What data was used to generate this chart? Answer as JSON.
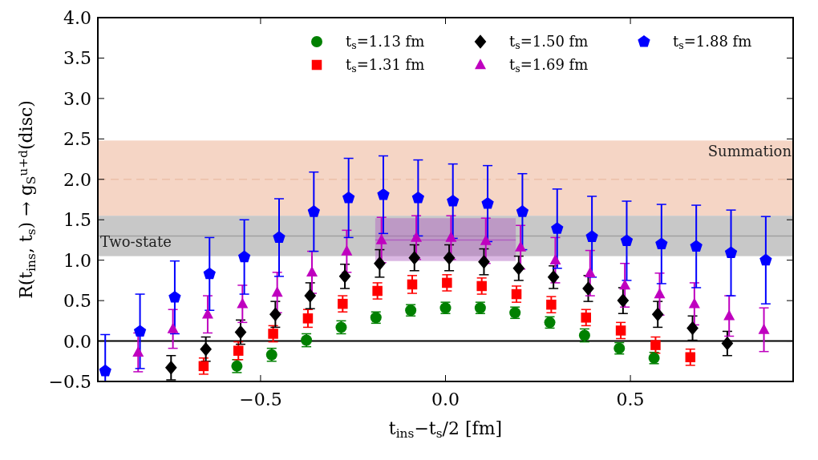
{
  "chart_data": {
    "type": "scatter",
    "xlabel": "t$_{ins}$−t$_{s}$/2 [fm]",
    "ylabel": "R(t$_{ins}$, t$_{s}$) → g$_{S}$$^{u+d}$(disc)",
    "xlim": [
      -0.94,
      0.94
    ],
    "ylim": [
      -0.5,
      4.0
    ],
    "xticks": [
      {
        "value": -0.5,
        "label": "−0.5"
      },
      {
        "value": 0,
        "label": "0.0"
      },
      {
        "value": 0.5,
        "label": "0.5"
      }
    ],
    "yticks": [
      {
        "value": -0.5,
        "label": "−0.5"
      },
      {
        "value": 0,
        "label": "0.0"
      },
      {
        "value": 0.5,
        "label": "0.5"
      },
      {
        "value": 1,
        "label": "1.0"
      },
      {
        "value": 1.5,
        "label": "1.5"
      },
      {
        "value": 2,
        "label": "2.0"
      },
      {
        "value": 2.5,
        "label": "2.5"
      },
      {
        "value": 3,
        "label": "3.0"
      },
      {
        "value": 3.5,
        "label": "3.5"
      },
      {
        "value": 4,
        "label": "4.0"
      }
    ],
    "legend": "top right",
    "bands": [
      {
        "axis": "y",
        "from": 1.55,
        "to": 2.48,
        "label": "Summation",
        "color": "#f5d5c5"
      },
      {
        "axis": "y",
        "from": 1.05,
        "to": 1.55,
        "label": "Two-state",
        "color": "#c8c8c8"
      }
    ],
    "ref_lines": [
      {
        "axis": "y",
        "value": 0,
        "color": "#000000",
        "line_style": "solid"
      },
      {
        "axis": "y",
        "value": 2.0,
        "color": "#ebbfa8",
        "line_style": "dashed"
      },
      {
        "axis": "y",
        "value": 1.3,
        "color": "#a0a0a0",
        "line_style": "solid"
      }
    ],
    "series": [
      {
        "type": "line",
        "color": "#b060c0",
        "x": [
          -0.19,
          0.19
        ],
        "values": [
          1.25,
          1.25
        ],
        "lower": [
          0.99,
          0.99
        ],
        "upper": [
          1.52,
          1.52
        ]
      },
      {
        "name": "t$_{s}$=1.13 fm",
        "color": "#008000",
        "marker": "circle",
        "x": [
          -0.564,
          -0.47,
          -0.376,
          -0.282,
          -0.188,
          -0.094,
          0,
          0.094,
          0.188,
          0.282,
          0.376,
          0.47,
          0.564
        ],
        "values": [
          -0.31,
          -0.17,
          0.01,
          0.17,
          0.29,
          0.38,
          0.41,
          0.41,
          0.35,
          0.23,
          0.07,
          -0.09,
          -0.21
        ],
        "errors": [
          0.08,
          0.08,
          0.08,
          0.08,
          0.07,
          0.07,
          0.07,
          0.07,
          0.07,
          0.07,
          0.08,
          0.07,
          0.07
        ]
      },
      {
        "name": "t$_{s}$=1.31 fm",
        "color": "#ff0000",
        "marker": "square",
        "x": [
          -0.654,
          -0.56,
          -0.466,
          -0.372,
          -0.278,
          -0.184,
          -0.09,
          0.004,
          0.098,
          0.192,
          0.286,
          0.38,
          0.474,
          0.568,
          0.662
        ],
        "values": [
          -0.31,
          -0.12,
          0.09,
          0.28,
          0.46,
          0.62,
          0.7,
          0.72,
          0.68,
          0.58,
          0.45,
          0.29,
          0.13,
          -0.05,
          -0.2
        ],
        "errors": [
          0.1,
          0.11,
          0.1,
          0.11,
          0.1,
          0.1,
          0.11,
          0.1,
          0.1,
          0.1,
          0.1,
          0.1,
          0.1,
          0.1,
          0.1
        ]
      },
      {
        "name": "t$_{s}$=1.50 fm",
        "color": "#000000",
        "marker": "diamond",
        "x": [
          -0.742,
          -0.648,
          -0.554,
          -0.46,
          -0.366,
          -0.272,
          -0.178,
          -0.084,
          0.01,
          0.104,
          0.198,
          0.292,
          0.386,
          0.48,
          0.574,
          0.668,
          0.762
        ],
        "values": [
          -0.33,
          -0.1,
          0.11,
          0.33,
          0.56,
          0.8,
          0.96,
          1.03,
          1.03,
          0.98,
          0.9,
          0.79,
          0.65,
          0.5,
          0.33,
          0.16,
          -0.03
        ],
        "errors": [
          0.15,
          0.15,
          0.15,
          0.16,
          0.16,
          0.15,
          0.17,
          0.16,
          0.16,
          0.16,
          0.15,
          0.14,
          0.16,
          0.16,
          0.16,
          0.15,
          0.15
        ]
      },
      {
        "name": "t$_{s}$=1.69 fm",
        "color": "#bf00bf",
        "marker": "triangle",
        "x": [
          -0.831,
          -0.737,
          -0.643,
          -0.549,
          -0.455,
          -0.361,
          -0.267,
          -0.173,
          -0.079,
          0.015,
          0.109,
          0.203,
          0.297,
          0.391,
          0.485,
          0.579,
          0.673,
          0.767,
          0.861
        ],
        "values": [
          -0.14,
          0.15,
          0.33,
          0.46,
          0.6,
          0.85,
          1.11,
          1.25,
          1.28,
          1.28,
          1.24,
          1.16,
          1.0,
          0.84,
          0.69,
          0.58,
          0.46,
          0.31,
          0.14
        ],
        "errors": [
          0.24,
          0.24,
          0.23,
          0.23,
          0.25,
          0.26,
          0.26,
          0.28,
          0.27,
          0.27,
          0.28,
          0.27,
          0.28,
          0.28,
          0.27,
          0.26,
          0.26,
          0.25,
          0.27
        ]
      },
      {
        "name": "t$_{s}$=1.88 fm",
        "color": "#0000ff",
        "x": [
          -0.92,
          -0.826,
          -0.732,
          -0.638,
          -0.544,
          -0.45,
          -0.356,
          -0.262,
          -0.168,
          -0.074,
          0.02,
          0.114,
          0.208,
          0.302,
          0.396,
          0.49,
          0.584,
          0.678,
          0.772,
          0.866
        ],
        "values": [
          -0.37,
          0.12,
          0.54,
          0.83,
          1.04,
          1.28,
          1.6,
          1.77,
          1.81,
          1.77,
          1.73,
          1.7,
          1.6,
          1.39,
          1.29,
          1.24,
          1.2,
          1.17,
          1.09,
          1.0
        ],
        "errors": [
          [
            -0.5,
            0.08
          ],
          0.46,
          0.45,
          0.45,
          0.46,
          0.48,
          0.49,
          0.49,
          0.48,
          0.47,
          0.46,
          0.47,
          0.47,
          0.49,
          0.5,
          0.49,
          0.49,
          0.51,
          0.53,
          0.54
        ]
      }
    ]
  }
}
